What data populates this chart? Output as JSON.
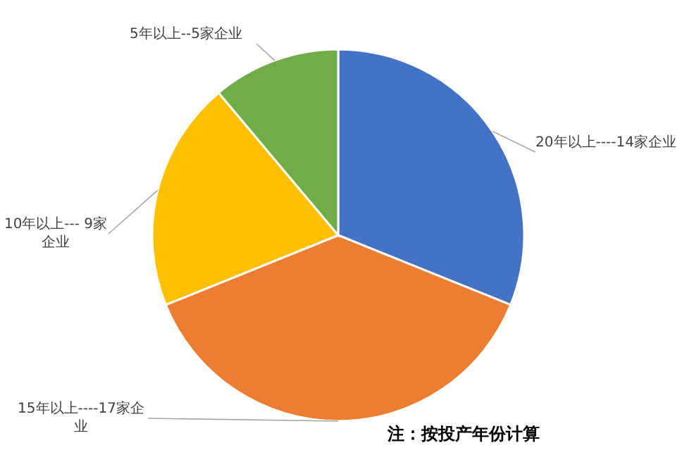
{
  "chart_data": {
    "type": "pie",
    "categories": [
      "20年以上----14家企业",
      "15年以上----17家企业",
      "10年以上--- 9家企业",
      "5年以上--5家企业"
    ],
    "values": [
      14,
      17,
      9,
      5
    ],
    "colors": [
      "#4472c4",
      "#ed7d31",
      "#ffc000",
      "#70ad47"
    ],
    "annotations": [
      "注：按投产年份计算"
    ]
  }
}
